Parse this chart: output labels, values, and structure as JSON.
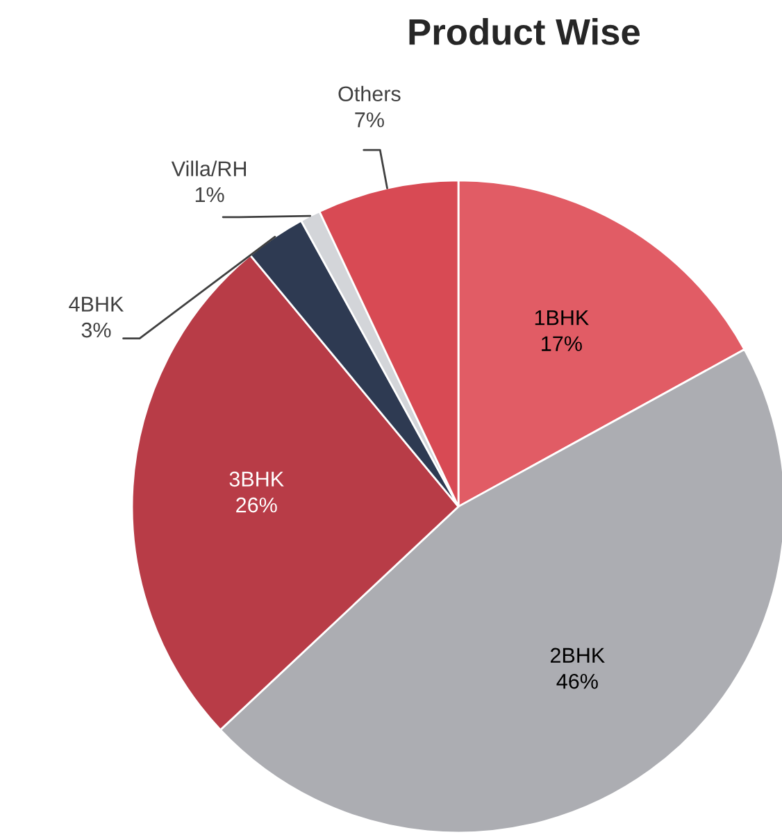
{
  "chart_data": {
    "type": "pie",
    "title": "Product Wise",
    "categories": [
      "1BHK",
      "2BHK",
      "3BHK",
      "4BHK",
      "Villa/RH",
      "Others"
    ],
    "values": [
      17,
      46,
      26,
      3,
      1,
      7
    ],
    "colors": [
      "#e15c65",
      "#acadb2",
      "#b83c47",
      "#2e3a52",
      "#d3d5d9",
      "#d84a54"
    ],
    "value_labels": [
      "17%",
      "46%",
      "26%",
      "3%",
      "1%",
      "7%"
    ]
  }
}
